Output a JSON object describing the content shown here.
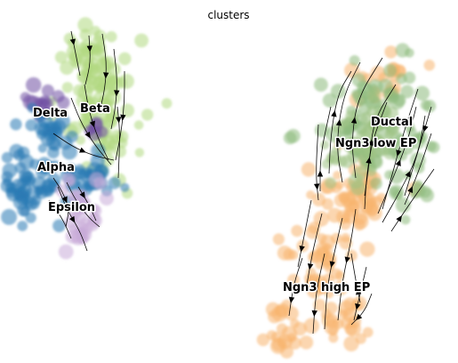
{
  "chart_data": {
    "type": "scatter",
    "plot_kind": "velocity stream embedding",
    "title": "clusters",
    "xlabel": "",
    "ylabel": "",
    "axes_visible": false,
    "grid": false,
    "legend": "on data",
    "clusters": [
      {
        "name": "Delta",
        "color": "#6f4fa2"
      },
      {
        "name": "Beta",
        "color": "#b0d87f"
      },
      {
        "name": "Alpha",
        "color": "#2a7ab5"
      },
      {
        "name": "Epsilon",
        "color": "#c8acd8"
      },
      {
        "name": "Ductal",
        "color": "#8db97c"
      },
      {
        "name": "Ngn3 low EP",
        "color": "#9fc383"
      },
      {
        "name": "Ngn3 high EP",
        "color": "#f7b56d"
      }
    ]
  }
}
